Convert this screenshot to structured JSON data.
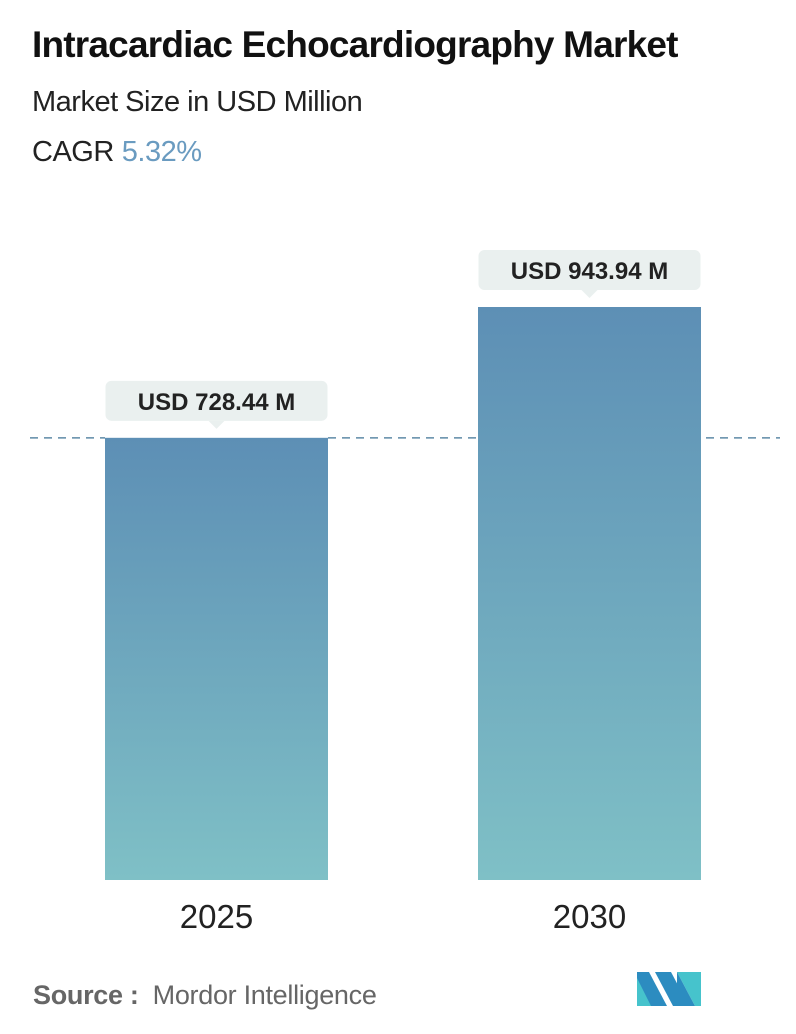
{
  "header": {
    "title": "Intracardiac Echocardiography Market",
    "subtitle": "Market Size in USD Million",
    "cagr_label": "CAGR",
    "cagr_value": "5.32%"
  },
  "chart_data": {
    "type": "bar",
    "categories": [
      "2025",
      "2030"
    ],
    "values": [
      728.44,
      943.94
    ],
    "data_labels": [
      "USD 728.44 M",
      "USD 943.94 M"
    ],
    "title": "Intracardiac Echocardiography Market",
    "ylabel": "Market Size in USD Million",
    "reference_line": "dashed line at 2025 value",
    "grid": false,
    "colors": {
      "bar_top": "#5d8fb5",
      "bar_bottom": "#7fc0c6",
      "label_bg": "#eaf0ef",
      "dashed_line": "#5e8aa6"
    }
  },
  "footer": {
    "source_label": "Source :",
    "source_value": "Mordor Intelligence",
    "logo": "mordor-intelligence-logo"
  }
}
